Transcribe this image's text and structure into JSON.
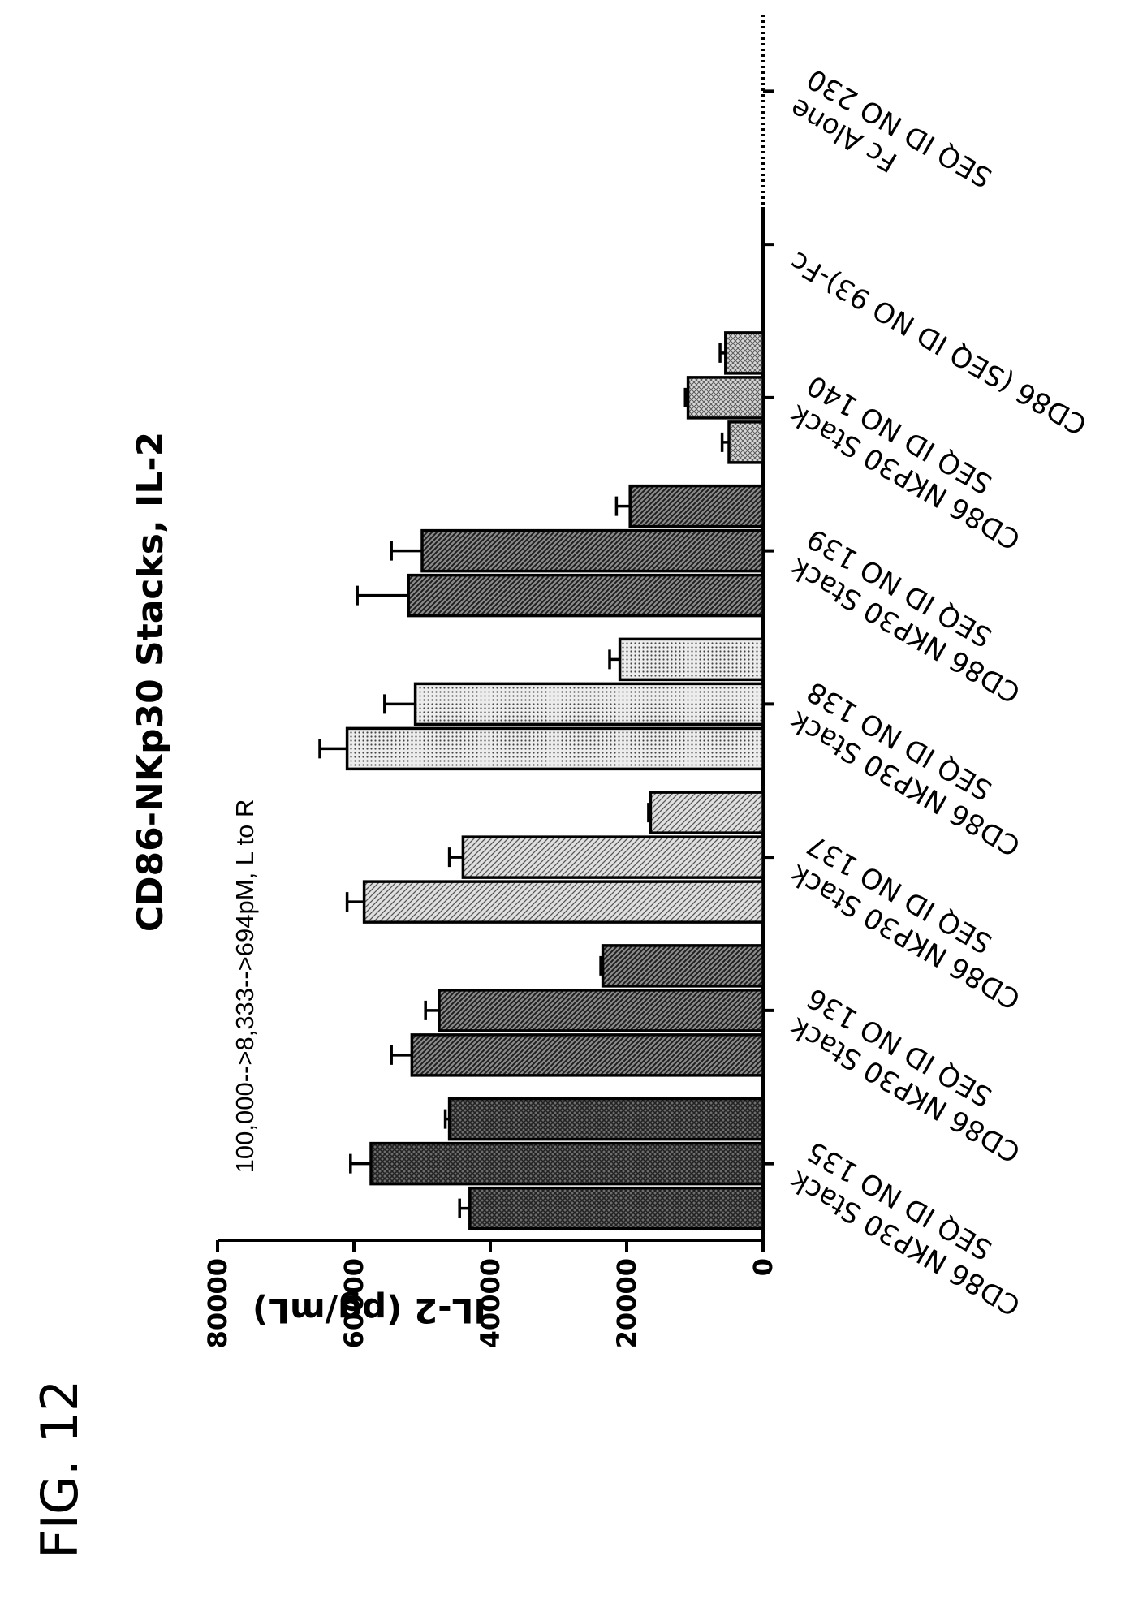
{
  "figure_label": "FIG. 12",
  "chart_data": {
    "type": "bar",
    "title": "CD86-NKp30 Stacks, IL-2",
    "annotation": "100,000-->8,333-->694pM, L to R",
    "ylabel": "IL-2 (pg/mL)",
    "ylim": [
      0,
      80000
    ],
    "yticks": [
      0,
      20000,
      40000,
      60000,
      80000
    ],
    "categories": [
      [
        "CD86 NKP30 Stack",
        "SEQ ID NO 135"
      ],
      [
        "CD86 NKP30 Stack",
        "SEQ ID NO 136"
      ],
      [
        "CD86 NKP30 Stack",
        "SEQ ID NO 137"
      ],
      [
        "CD86 NKP30 Stack",
        "SEQ ID NO 138"
      ],
      [
        "CD86 NKP30 Stack",
        "SEQ ID NO 139"
      ],
      [
        "CD86 NKP30 Stack",
        "SEQ ID NO 140"
      ],
      [
        "CD86 (SEQ ID NO 93)-Fc"
      ],
      [
        "Fc Alone",
        "SEQ ID NO 230"
      ]
    ],
    "groups": [
      {
        "values": [
          43000,
          57500,
          46000
        ],
        "errors": [
          1500,
          3000,
          600
        ],
        "pattern": "dark-cross"
      },
      {
        "values": [
          51500,
          47500,
          23500
        ],
        "errors": [
          3000,
          2000,
          300
        ],
        "pattern": "dark-diag"
      },
      {
        "values": [
          58500,
          44000,
          16500
        ],
        "errors": [
          2500,
          2000,
          300
        ],
        "pattern": "light-diag"
      },
      {
        "values": [
          61000,
          51000,
          21000
        ],
        "errors": [
          4000,
          4500,
          1500
        ],
        "pattern": "light-dot"
      },
      {
        "values": [
          52000,
          50000,
          19500
        ],
        "errors": [
          7500,
          4500,
          2000
        ],
        "pattern": "dark-diag"
      },
      {
        "values": [
          5000,
          11000,
          5500
        ],
        "errors": [
          1000,
          400,
          800
        ],
        "pattern": "light-cross"
      },
      {
        "values": [],
        "errors": [],
        "pattern": "none"
      },
      {
        "values": [],
        "errors": [],
        "pattern": "none"
      }
    ],
    "baseline_style": "dotted",
    "grid": false,
    "legend": "none"
  }
}
